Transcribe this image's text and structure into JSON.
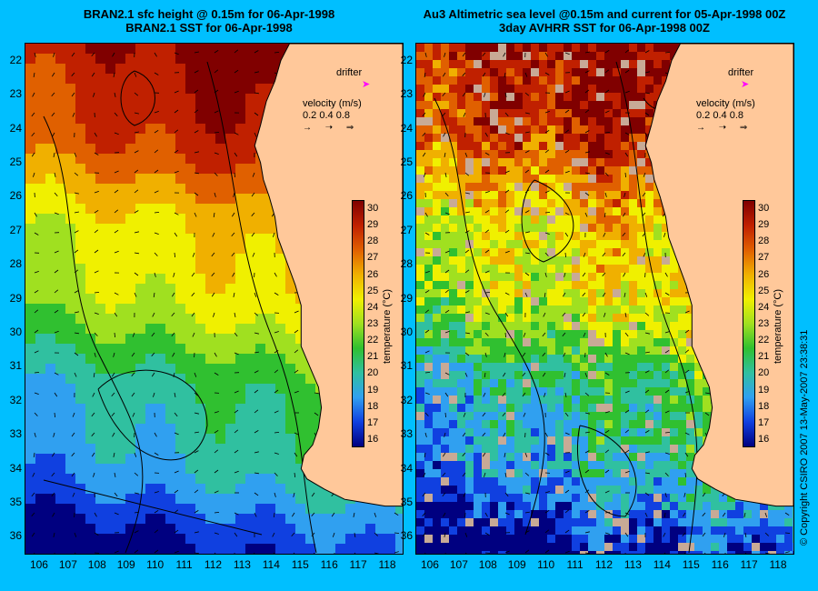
{
  "colors": {
    "background": "#00bfff",
    "land": "#ffc89a",
    "drifter_arrow": "#ff00ff",
    "colorbar": [
      "#000080",
      "#1040e0",
      "#30a0f0",
      "#30c0a0",
      "#30c030",
      "#a0e020",
      "#f0f000",
      "#f0b000",
      "#e06000",
      "#c02000",
      "#800000"
    ]
  },
  "left_panel": {
    "title_line1": "BRAN2.1 sfc height @ 0.15m for 06-Apr-1998",
    "title_line2": "BRAN2.1 SST for 06-Apr-1998",
    "drifter_label": "drifter",
    "drifter_icon": "arrow-right-icon",
    "velocity_label": "velocity (m/s)",
    "velocity_scale": "0.2 0.4 0.8",
    "colorbar_label": "temperature (°C)"
  },
  "right_panel": {
    "title_line1": "Au3 Altimetric sea level  @0.15m and current for 05-Apr-1998 00Z",
    "title_line2": "3day AVHRR SST for 06-Apr-1998 00Z",
    "drifter_label": "drifter",
    "drifter_icon": "arrow-right-icon",
    "velocity_label": "velocity (m/s)",
    "velocity_scale": "0.2 0.4 0.8",
    "colorbar_label": "temperature (°C)"
  },
  "axes": {
    "latitude_ticks": [
      "22",
      "23",
      "24",
      "25",
      "26",
      "27",
      "28",
      "29",
      "30",
      "31",
      "32",
      "33",
      "34",
      "35",
      "36"
    ],
    "longitude_ticks": [
      "106",
      "107",
      "108",
      "109",
      "110",
      "111",
      "112",
      "113",
      "114",
      "115",
      "116",
      "117",
      "118"
    ],
    "lat_range": [
      21.5,
      36.5
    ],
    "lon_range": [
      105.5,
      118.5
    ]
  },
  "colorbar": {
    "ticks": [
      "30",
      "29",
      "28",
      "27",
      "26",
      "25",
      "24",
      "23",
      "22",
      "21",
      "20",
      "19",
      "18",
      "17",
      "16"
    ],
    "range": [
      15.5,
      30.5
    ]
  },
  "copyright": "© Copyright CSIRO 2007   13-May-2007 23:38:31"
}
